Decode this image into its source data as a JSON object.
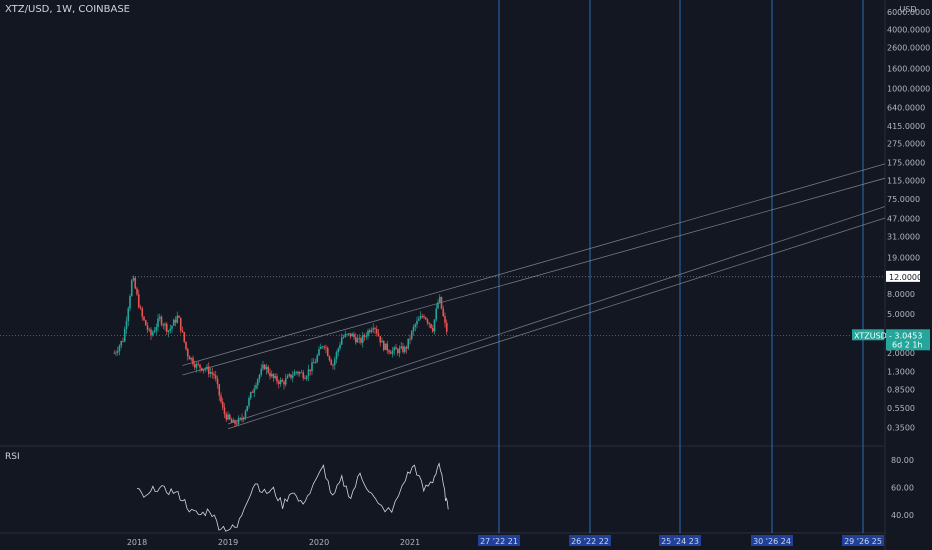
{
  "header": {
    "symbol_line": "XTZ/USD, 1W, COINBASE"
  },
  "rsi": {
    "label": "RSI",
    "ticks": [
      "80.00",
      "60.00",
      "40.00"
    ]
  },
  "price_axis": {
    "unit": "USD",
    "ticks": [
      "6000.0000",
      "4000.0000",
      "2600.0000",
      "1600.0000",
      "1000.0000",
      "640.0000",
      "415.0000",
      "275.0000",
      "175.0000",
      "115.0000",
      "75.0000",
      "47.0000",
      "31.0000",
      "19.0000",
      "8.0000",
      "5.0000",
      "2.0000",
      "1.3000",
      "0.8500",
      "0.5500",
      "0.3500"
    ],
    "horizontal_line_label": "12.0000",
    "current_price": {
      "symbol": "XTZUSD",
      "price": "3.0453",
      "countdown": "6d 2 1h",
      "color": "#26a69a"
    }
  },
  "time_axis": {
    "years": [
      "2018",
      "2019",
      "2020",
      "2021"
    ],
    "vertical_line_labels": [
      "27 '22 21",
      "26 '22 22",
      "25 '24 23",
      "30 '26 24",
      "29 '26 25"
    ]
  },
  "colors": {
    "up": "#26a69a",
    "down": "#ef5350",
    "background": "#131722",
    "vline": "#2a6db0",
    "trend": "#9598a1"
  },
  "chart_data": {
    "type": "candlestick",
    "title": "XTZ/USD, 1W, COINBASE",
    "scale": "log",
    "ylim": [
      0.3,
      6000
    ],
    "price_ticks": [
      6000,
      4000,
      2600,
      1600,
      1000,
      640,
      415,
      275,
      175,
      115,
      75,
      47,
      31,
      19,
      12,
      8,
      5,
      3.0453,
      2,
      1.3,
      0.85,
      0.55,
      0.35
    ],
    "price_path_close": [
      [
        2017.75,
        2.0
      ],
      [
        2017.85,
        2.8
      ],
      [
        2017.95,
        12.0
      ],
      [
        2018.05,
        4.8
      ],
      [
        2018.15,
        3.0
      ],
      [
        2018.25,
        4.5
      ],
      [
        2018.35,
        3.4
      ],
      [
        2018.45,
        4.8
      ],
      [
        2018.55,
        2.0
      ],
      [
        2018.65,
        1.5
      ],
      [
        2018.75,
        1.4
      ],
      [
        2018.85,
        1.2
      ],
      [
        2018.95,
        0.5
      ],
      [
        2019.05,
        0.38
      ],
      [
        2019.15,
        0.42
      ],
      [
        2019.3,
        1.0
      ],
      [
        2019.4,
        1.5
      ],
      [
        2019.5,
        1.1
      ],
      [
        2019.6,
        1.0
      ],
      [
        2019.75,
        1.3
      ],
      [
        2019.85,
        1.2
      ],
      [
        2019.95,
        1.6
      ],
      [
        2020.05,
        2.6
      ],
      [
        2020.15,
        1.5
      ],
      [
        2020.25,
        2.9
      ],
      [
        2020.35,
        3.1
      ],
      [
        2020.45,
        2.6
      ],
      [
        2020.6,
        4.0
      ],
      [
        2020.7,
        2.4
      ],
      [
        2020.8,
        2.1
      ],
      [
        2020.95,
        2.2
      ],
      [
        2021.05,
        3.8
      ],
      [
        2021.15,
        5.0
      ],
      [
        2021.25,
        3.6
      ],
      [
        2021.32,
        7.5
      ],
      [
        2021.38,
        4.0
      ],
      [
        2021.42,
        3.05
      ]
    ],
    "rsi_path": [
      [
        2018.0,
        58
      ],
      [
        2018.1,
        52
      ],
      [
        2018.2,
        60
      ],
      [
        2018.3,
        58
      ],
      [
        2018.4,
        57
      ],
      [
        2018.5,
        52
      ],
      [
        2018.6,
        42
      ],
      [
        2018.7,
        40
      ],
      [
        2018.8,
        44
      ],
      [
        2018.9,
        32
      ],
      [
        2019.0,
        30
      ],
      [
        2019.1,
        31
      ],
      [
        2019.2,
        50
      ],
      [
        2019.3,
        64
      ],
      [
        2019.4,
        56
      ],
      [
        2019.5,
        58
      ],
      [
        2019.6,
        47
      ],
      [
        2019.7,
        58
      ],
      [
        2019.8,
        48
      ],
      [
        2019.9,
        56
      ],
      [
        2020.05,
        75
      ],
      [
        2020.15,
        52
      ],
      [
        2020.25,
        66
      ],
      [
        2020.35,
        53
      ],
      [
        2020.45,
        70
      ],
      [
        2020.55,
        58
      ],
      [
        2020.65,
        47
      ],
      [
        2020.8,
        42
      ],
      [
        2020.95,
        67
      ],
      [
        2021.05,
        76
      ],
      [
        2021.15,
        58
      ],
      [
        2021.25,
        65
      ],
      [
        2021.32,
        78
      ],
      [
        2021.38,
        56
      ],
      [
        2021.42,
        44
      ]
    ]
  }
}
